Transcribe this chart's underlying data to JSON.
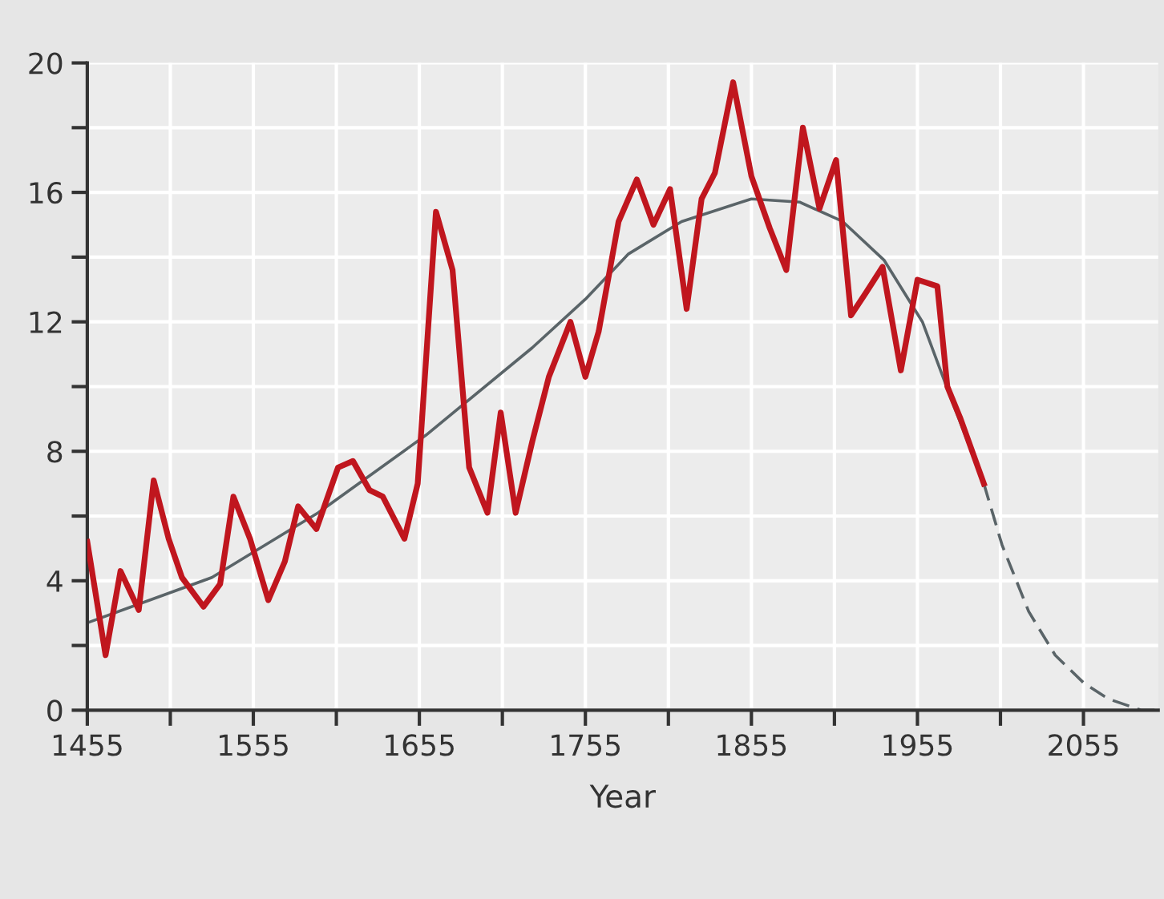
{
  "chart_data": {
    "type": "line",
    "xlabel": "Year",
    "xlim": [
      1455,
      2100
    ],
    "ylim": [
      0,
      20
    ],
    "xticks": [
      1455,
      {
        "value": 1505,
        "label": null
      },
      1555,
      {
        "value": 1605,
        "label": null
      },
      1655,
      {
        "value": 1705,
        "label": null
      },
      1755,
      {
        "value": 1805,
        "label": null
      },
      1855,
      {
        "value": 1905,
        "label": null
      },
      1955,
      {
        "value": 2005,
        "label": null
      },
      2055
    ],
    "yticks": [
      0,
      {
        "value": 2,
        "label": null
      },
      4,
      {
        "value": 6,
        "label": null
      },
      8,
      {
        "value": 10,
        "label": null
      },
      12,
      {
        "value": 14,
        "label": null
      },
      16,
      {
        "value": 18,
        "label": null
      },
      20
    ],
    "grid": true,
    "series": [
      {
        "color": "#c0161e",
        "line_style": "solid",
        "x": [
          1455,
          1466,
          1475,
          1486,
          1495,
          1504,
          1512,
          1525,
          1535,
          1543,
          1553,
          1564,
          1574,
          1582,
          1593,
          1606,
          1615,
          1625,
          1633,
          1646,
          1654,
          1665,
          1675,
          1685,
          1696,
          1704,
          1713,
          1723,
          1733,
          1746,
          1755,
          1763,
          1775,
          1786,
          1796,
          1806,
          1816,
          1825,
          1833,
          1844,
          1855,
          1866,
          1876,
          1886,
          1896,
          1906,
          1915,
          1924,
          1934,
          1945,
          1955,
          1967,
          1973,
          1981,
          1995
        ],
        "values": [
          5.2,
          1.7,
          4.3,
          3.1,
          7.1,
          5.3,
          4.1,
          3.2,
          3.9,
          6.6,
          5.3,
          3.4,
          4.6,
          6.3,
          5.6,
          7.5,
          7.7,
          6.8,
          6.6,
          5.3,
          7.0,
          15.4,
          13.6,
          7.5,
          6.1,
          9.2,
          6.1,
          8.3,
          10.3,
          12.0,
          10.3,
          11.7,
          15.1,
          16.4,
          15.0,
          16.1,
          12.4,
          15.8,
          16.6,
          19.4,
          16.5,
          14.9,
          13.6,
          18.0,
          15.5,
          17.0,
          12.2,
          12.9,
          13.7,
          10.5,
          13.3,
          13.1,
          10.0,
          9.0,
          7.0
        ]
      },
      {
        "color": "#5a6468",
        "line_style": "solid",
        "x": [
          1455,
          1530,
          1594,
          1659,
          1723,
          1755,
          1781,
          1813,
          1855,
          1884,
          1910,
          1935,
          1958,
          1974,
          1995
        ],
        "values": [
          2.7,
          4.1,
          6.1,
          8.5,
          11.2,
          12.7,
          14.1,
          15.1,
          15.8,
          15.7,
          15.1,
          13.9,
          12.0,
          9.8,
          7.0
        ]
      },
      {
        "color": "#5a6468",
        "line_style": "dashed",
        "x": [
          1995,
          2006,
          2022,
          2038,
          2055,
          2070,
          2090,
          2100
        ],
        "values": [
          7.0,
          5.1,
          3.05,
          1.7,
          0.85,
          0.35,
          0.0,
          0.0
        ]
      }
    ]
  }
}
